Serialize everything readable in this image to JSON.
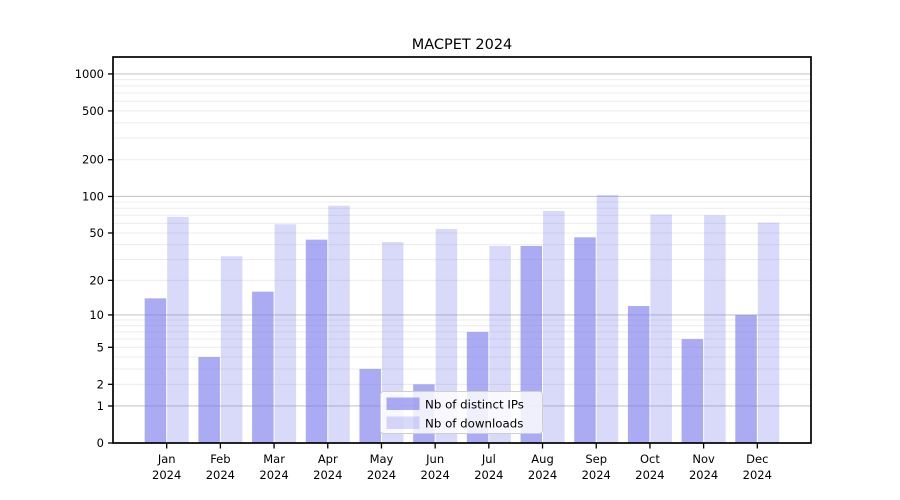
{
  "chart_data": {
    "type": "bar",
    "title": "MACPET 2024",
    "categories": [
      "Jan",
      "Feb",
      "Mar",
      "Apr",
      "May",
      "Jun",
      "Jul",
      "Aug",
      "Sep",
      "Oct",
      "Nov",
      "Dec"
    ],
    "category_year": "2024",
    "series": [
      {
        "name": "Nb of distinct IPs",
        "color": "#7777ee",
        "alpha": 0.62,
        "values": [
          14,
          4,
          16,
          44,
          3,
          2,
          7,
          39,
          46,
          12,
          6,
          10
        ]
      },
      {
        "name": "Nb of downloads",
        "color": "#7777ee",
        "alpha": 0.28,
        "values": [
          68,
          32,
          59,
          84,
          42,
          54,
          39,
          76,
          103,
          71,
          70,
          61
        ]
      }
    ],
    "yscale": "log1p",
    "yticks": [
      0,
      1,
      2,
      5,
      10,
      20,
      50,
      100,
      200,
      500,
      1000
    ],
    "ytick_labels": [
      "0",
      "1",
      "2",
      "5",
      "10",
      "20",
      "50",
      "100",
      "200",
      "500",
      "1000"
    ],
    "ylim": [
      0,
      1370
    ],
    "grid": {
      "on": true,
      "major_color": "#c8c8c8",
      "minor_color": "#ececec"
    },
    "legend": {
      "position": "lower-center",
      "background": "#ffffff",
      "border_color": "#cfcfcf"
    },
    "spine_color": "#000000"
  }
}
